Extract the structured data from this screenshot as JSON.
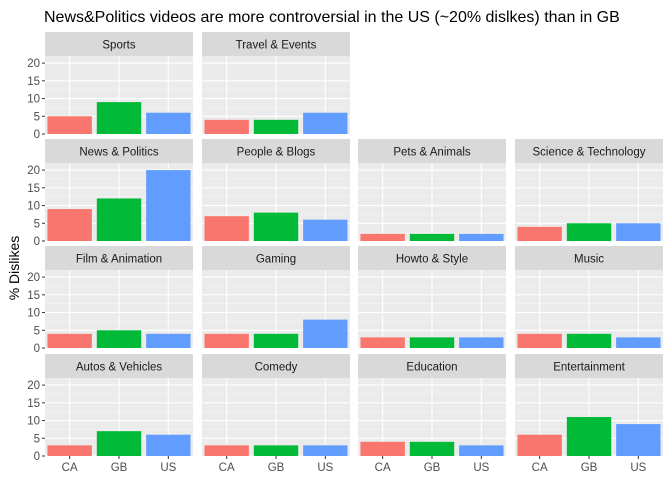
{
  "chart_data": {
    "type": "bar",
    "title": "News&Politics videos are more controversial in the US (~20% dislkes) than in GB",
    "xlabel": "",
    "ylabel": "% Dislikes",
    "ylim": [
      0,
      22
    ],
    "yticks": [
      0,
      5,
      10,
      15,
      20
    ],
    "categories": [
      "CA",
      "GB",
      "US"
    ],
    "colors": {
      "CA": "#F8766D",
      "GB": "#00BA38",
      "US": "#619CFF"
    },
    "grid": true,
    "legend": "none",
    "facets": [
      {
        "name": "Sports",
        "values": [
          5,
          9,
          6
        ]
      },
      {
        "name": "Travel & Events",
        "values": [
          4,
          4,
          6
        ]
      },
      {
        "name": "News & Politics",
        "values": [
          9,
          12,
          20
        ]
      },
      {
        "name": "People & Blogs",
        "values": [
          7,
          8,
          6
        ]
      },
      {
        "name": "Pets & Animals",
        "values": [
          2,
          2,
          2
        ]
      },
      {
        "name": "Science & Technology",
        "values": [
          4,
          5,
          5
        ]
      },
      {
        "name": "Film & Animation",
        "values": [
          4,
          5,
          4
        ]
      },
      {
        "name": "Gaming",
        "values": [
          4,
          4,
          8
        ]
      },
      {
        "name": "Howto & Style",
        "values": [
          3,
          3,
          3
        ]
      },
      {
        "name": "Music",
        "values": [
          4,
          4,
          3
        ]
      },
      {
        "name": "Autos & Vehicles",
        "values": [
          3,
          7,
          6
        ]
      },
      {
        "name": "Comedy",
        "values": [
          3,
          3,
          3
        ]
      },
      {
        "name": "Education",
        "values": [
          4,
          4,
          3
        ]
      },
      {
        "name": "Entertainment",
        "values": [
          6,
          11,
          9
        ]
      }
    ]
  }
}
